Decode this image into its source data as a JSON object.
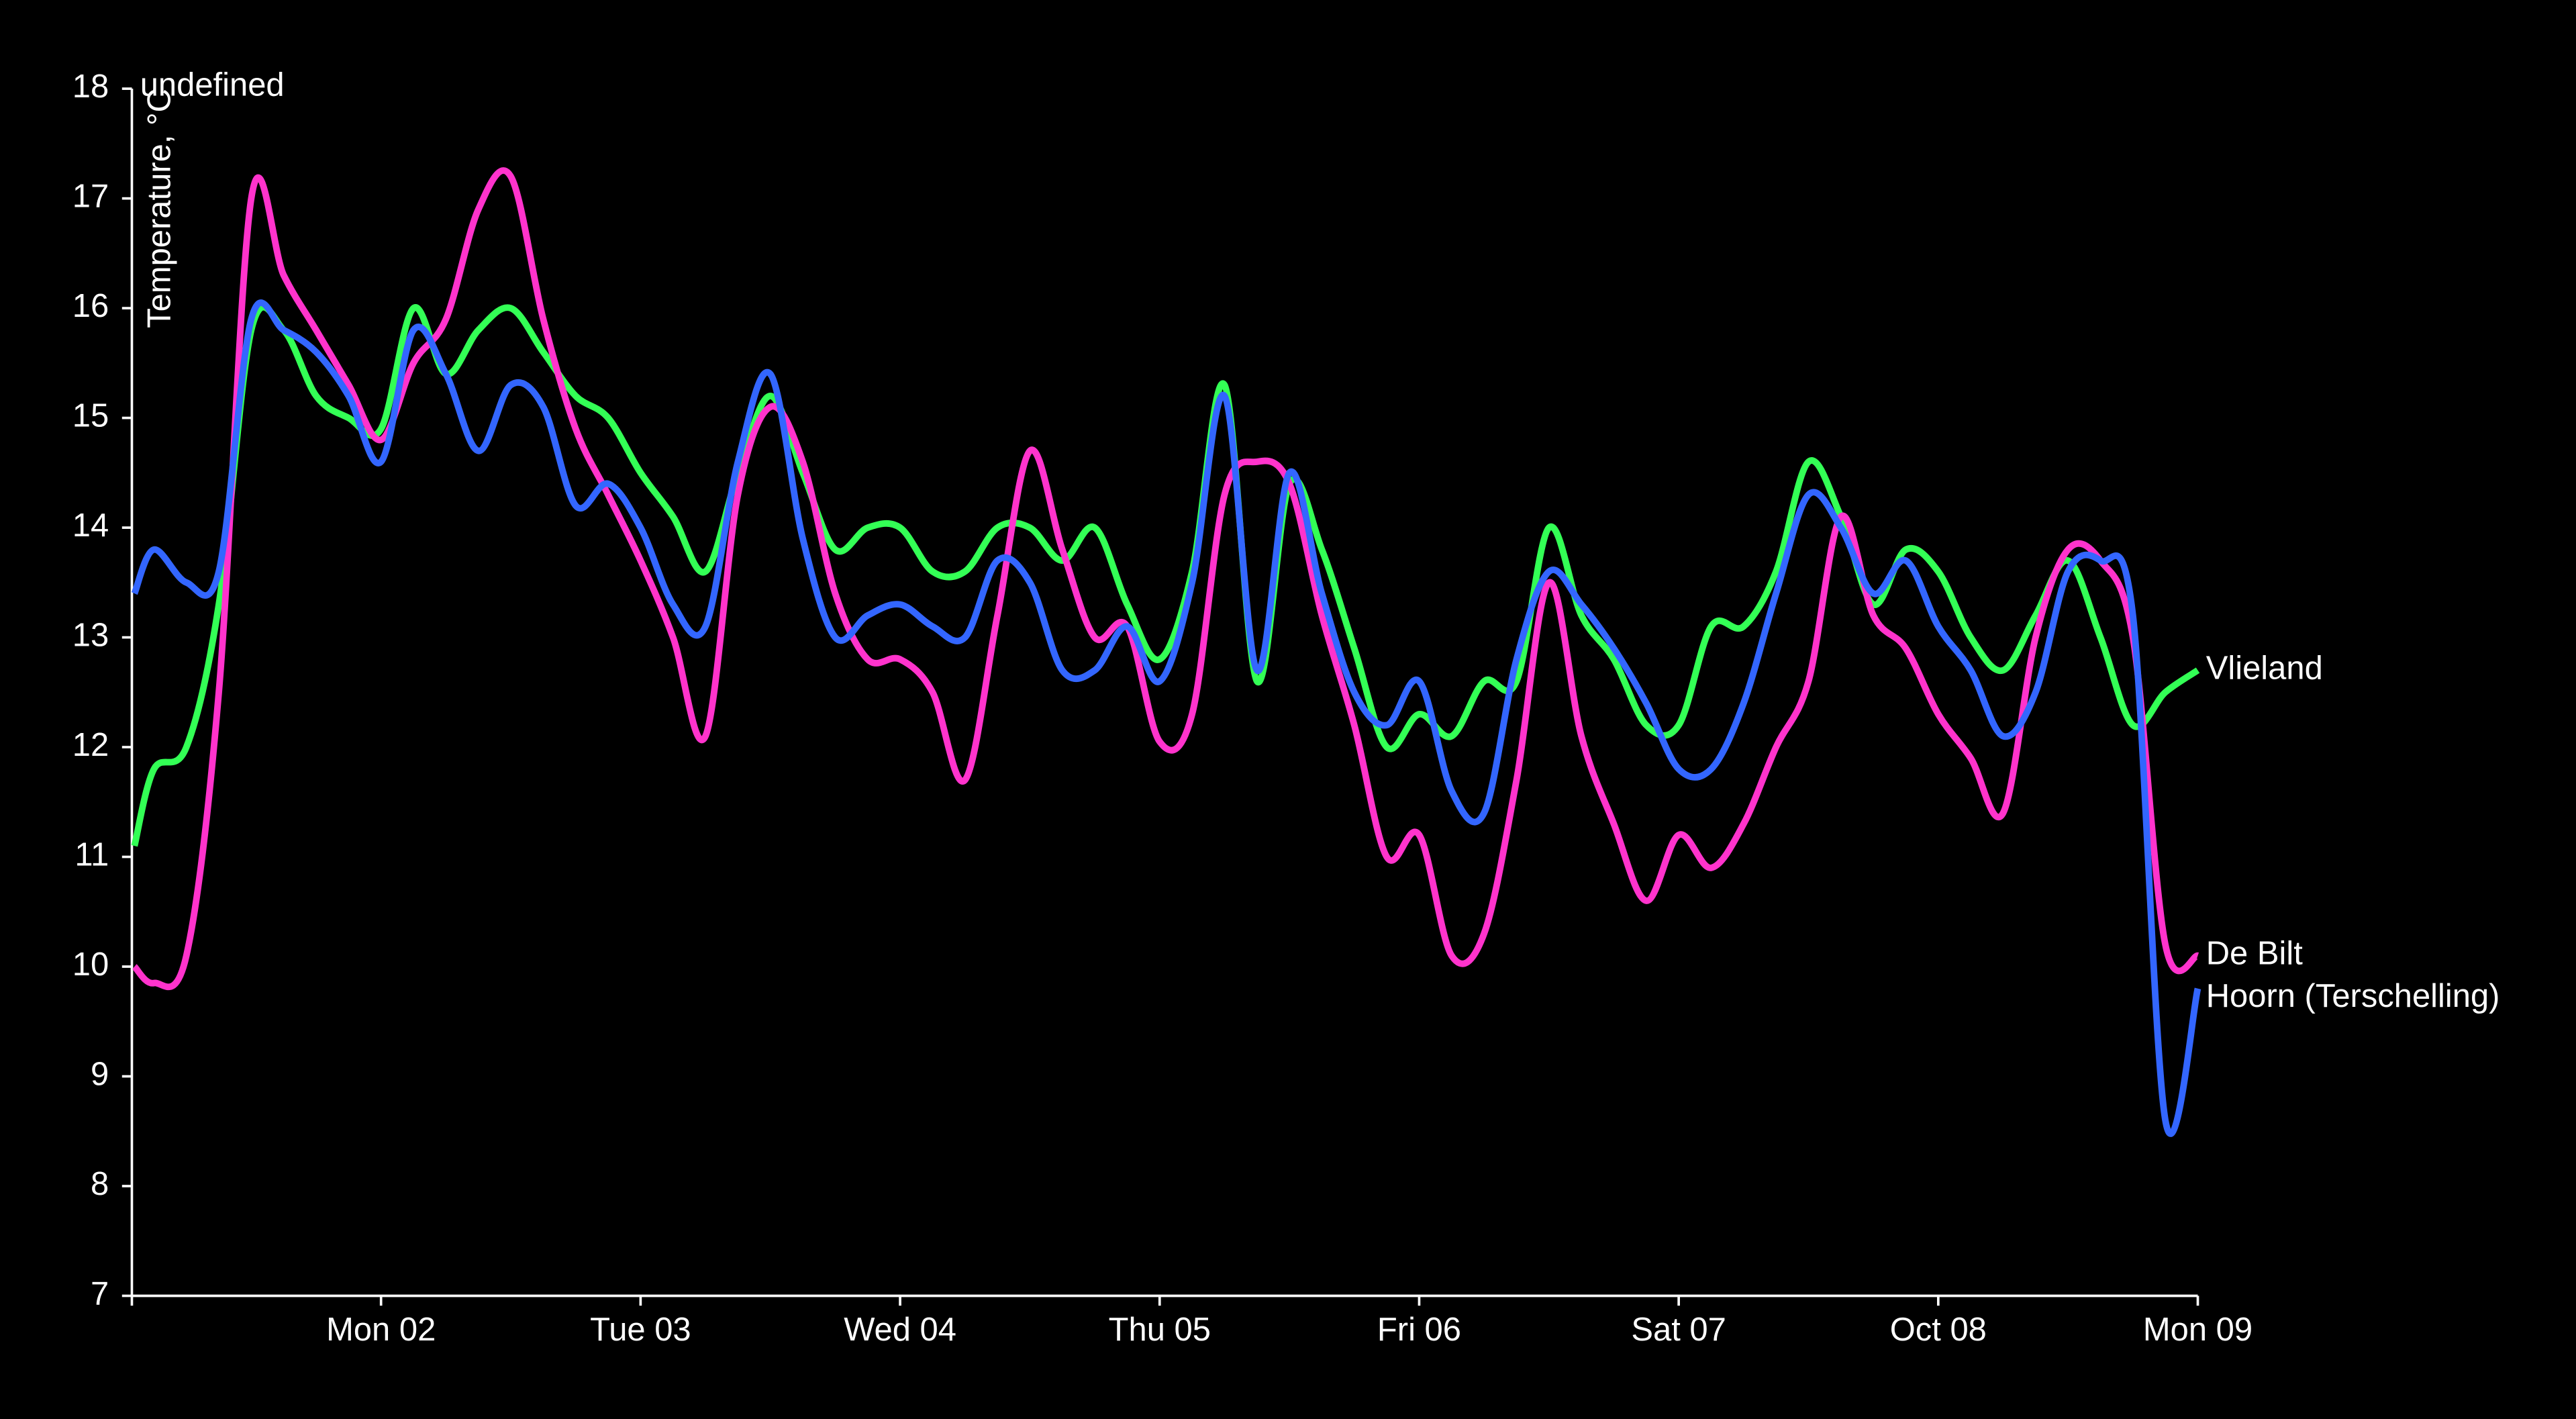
{
  "chart_data": {
    "type": "line",
    "title": "undefined",
    "ylabel": "Temperature, °C",
    "x": [
      1.05,
      1.125,
      1.25,
      1.375,
      1.5,
      1.625,
      1.75,
      1.875,
      2,
      2.125,
      2.25,
      2.375,
      2.5,
      2.625,
      2.75,
      2.875,
      3,
      3.125,
      3.25,
      3.375,
      3.5,
      3.625,
      3.75,
      3.875,
      4,
      4.125,
      4.25,
      4.375,
      4.5,
      4.625,
      4.75,
      4.875,
      5,
      5.125,
      5.25,
      5.375,
      5.5,
      5.625,
      5.75,
      5.875,
      6,
      6.125,
      6.25,
      6.375,
      6.5,
      6.625,
      6.75,
      6.875,
      7,
      7.125,
      7.25,
      7.375,
      7.5,
      7.625,
      7.75,
      7.875,
      8,
      8.125,
      8.25,
      8.375,
      8.5,
      8.625,
      8.75,
      8.875,
      9
    ],
    "series": [
      {
        "name": "Vlieland",
        "color": "#33ff55",
        "values": [
          11.1,
          11.8,
          12.0,
          13.3,
          15.8,
          15.8,
          15.2,
          15.0,
          14.9,
          16.0,
          15.4,
          15.8,
          16.0,
          15.6,
          15.2,
          15.0,
          14.5,
          14.1,
          13.6,
          14.5,
          15.2,
          14.5,
          13.8,
          14.0,
          14.0,
          13.6,
          13.6,
          14.0,
          14.0,
          13.7,
          14.0,
          13.3,
          12.8,
          13.6,
          15.3,
          12.6,
          14.4,
          13.8,
          12.9,
          12.0,
          12.3,
          12.1,
          12.6,
          12.6,
          14.0,
          13.2,
          12.8,
          12.2,
          12.2,
          13.1,
          13.1,
          13.6,
          14.6,
          14.1,
          13.3,
          13.8,
          13.6,
          13.0,
          12.7,
          13.2,
          13.7,
          13.0,
          12.2,
          12.5,
          12.7
        ]
      },
      {
        "name": "De Bilt",
        "color": "#ff33cc",
        "values": [
          10.0,
          9.85,
          10.1,
          12.5,
          17.0,
          16.3,
          15.8,
          15.3,
          14.8,
          15.5,
          15.9,
          16.9,
          17.2,
          15.9,
          14.9,
          14.3,
          13.7,
          13.0,
          12.1,
          14.3,
          15.1,
          14.6,
          13.4,
          12.8,
          12.8,
          12.5,
          11.7,
          13.2,
          14.7,
          13.8,
          13.0,
          13.1,
          12.05,
          12.3,
          14.3,
          14.6,
          14.4,
          13.2,
          12.2,
          11.0,
          11.2,
          10.1,
          10.3,
          11.7,
          13.5,
          12.1,
          11.3,
          10.6,
          11.2,
          10.9,
          11.3,
          12.0,
          12.6,
          14.1,
          13.2,
          12.9,
          12.3,
          11.9,
          11.4,
          13.0,
          13.8,
          13.7,
          13.0,
          10.2,
          10.1
        ]
      },
      {
        "name": "Hoorn (Terschelling)",
        "color": "#3366ff",
        "values": [
          13.4,
          13.8,
          13.5,
          13.6,
          15.9,
          15.8,
          15.6,
          15.2,
          14.6,
          15.8,
          15.4,
          14.7,
          15.3,
          15.1,
          14.2,
          14.4,
          14.0,
          13.3,
          13.1,
          14.6,
          15.4,
          13.9,
          13.0,
          13.2,
          13.3,
          13.1,
          13.0,
          13.7,
          13.5,
          12.7,
          12.7,
          13.1,
          12.6,
          13.5,
          15.2,
          12.7,
          14.5,
          13.4,
          12.5,
          12.2,
          12.6,
          11.6,
          11.4,
          12.8,
          13.6,
          13.3,
          12.9,
          12.4,
          11.8,
          11.8,
          12.4,
          13.4,
          14.3,
          14.0,
          13.4,
          13.7,
          13.1,
          12.7,
          12.1,
          12.5,
          13.6,
          13.7,
          13.2,
          8.6,
          9.8
        ]
      }
    ],
    "xlim": [
      1.04,
      9
    ],
    "xticks": [
      {
        "value": 2,
        "label": "Mon 02"
      },
      {
        "value": 3,
        "label": "Tue 03"
      },
      {
        "value": 4,
        "label": "Wed 04"
      },
      {
        "value": 5,
        "label": "Thu 05"
      },
      {
        "value": 6,
        "label": "Fri 06"
      },
      {
        "value": 7,
        "label": "Sat 07"
      },
      {
        "value": 8,
        "label": "Oct 08"
      },
      {
        "value": 9,
        "label": "Mon 09"
      }
    ],
    "ylim": [
      7,
      18
    ],
    "yticks": [
      7,
      8,
      9,
      10,
      11,
      12,
      13,
      14,
      15,
      16,
      17,
      18
    ],
    "grid": false
  }
}
